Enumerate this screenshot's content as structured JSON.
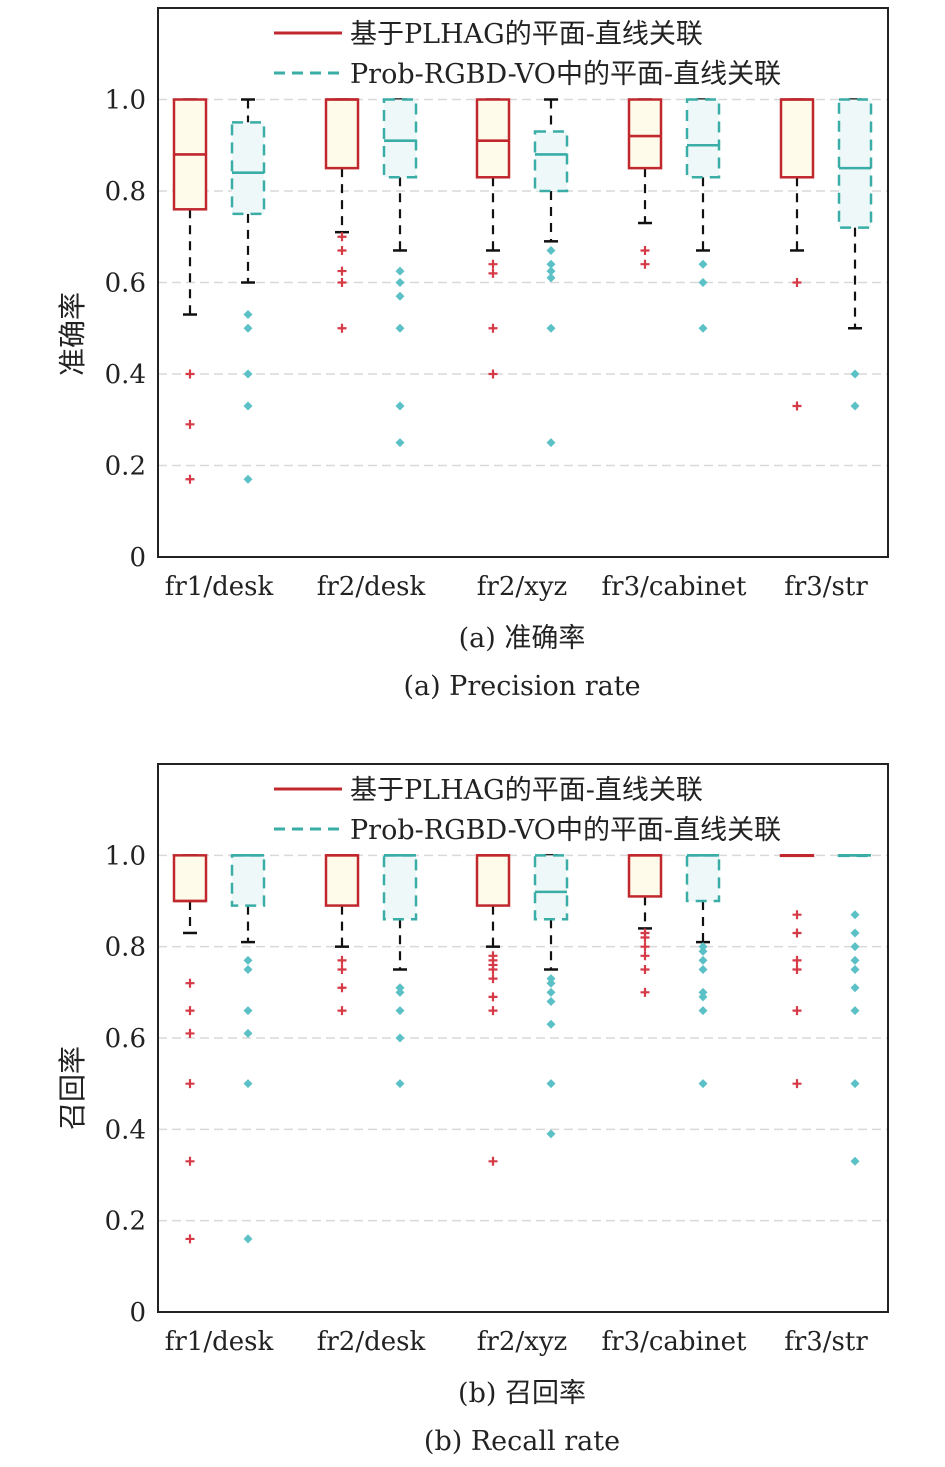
{
  "series_styles": [
    {
      "name": "基于PLHAG的平面-直线关联",
      "color": "#c0282e",
      "fill": "#fffbea",
      "dash": "",
      "flier_color": "#d63a46"
    },
    {
      "name": "Prob-RGBD-VO中的平面-直线关联",
      "color": "#3aada7",
      "fill": "#eef8f8",
      "dash": "11 7",
      "flier_color": "#5cc1c6"
    }
  ],
  "chart_data": [
    {
      "type": "box",
      "ylabel": "准确率",
      "caption_cn": "(a) 准确率",
      "caption_en": "(a) Precision rate",
      "categories": [
        "fr1/desk",
        "fr2/desk",
        "fr2/xyz",
        "fr3/cabinet",
        "fr3/str"
      ],
      "ylim": [
        0,
        1.2
      ],
      "yticks": [
        0,
        0.2,
        0.4,
        0.6,
        0.8,
        1.0
      ],
      "ytick_labels": [
        "0",
        "0.2",
        "0.4",
        "0.6",
        "0.8",
        "1.0"
      ],
      "grid": true,
      "legend": "top",
      "series": [
        {
          "name": "基于PLHAG的平面-直线关联",
          "boxes": [
            {
              "q1": 0.76,
              "median": 0.88,
              "q3": 1.0,
              "whislo": 0.53,
              "whishi": 1.0,
              "fliers": [
                0.4,
                0.29,
                0.17
              ]
            },
            {
              "q1": 0.85,
              "median": 1.0,
              "q3": 1.0,
              "whislo": 0.71,
              "whishi": 1.0,
              "fliers": [
                0.7,
                0.67,
                0.625,
                0.6,
                0.5
              ]
            },
            {
              "q1": 0.83,
              "median": 0.91,
              "q3": 1.0,
              "whislo": 0.67,
              "whishi": 1.0,
              "fliers": [
                0.64,
                0.62,
                0.5,
                0.4
              ]
            },
            {
              "q1": 0.85,
              "median": 0.92,
              "q3": 1.0,
              "whislo": 0.73,
              "whishi": 1.0,
              "fliers": [
                0.67,
                0.64
              ]
            },
            {
              "q1": 0.83,
              "median": 1.0,
              "q3": 1.0,
              "whislo": 0.67,
              "whishi": 1.0,
              "fliers": [
                0.6,
                0.33
              ]
            }
          ]
        },
        {
          "name": "Prob-RGBD-VO中的平面-直线关联",
          "boxes": [
            {
              "q1": 0.75,
              "median": 0.84,
              "q3": 0.95,
              "whislo": 0.6,
              "whishi": 1.0,
              "fliers": [
                0.53,
                0.5,
                0.4,
                0.33,
                0.17
              ]
            },
            {
              "q1": 0.83,
              "median": 0.91,
              "q3": 1.0,
              "whislo": 0.67,
              "whishi": 1.0,
              "fliers": [
                0.625,
                0.6,
                0.57,
                0.5,
                0.33,
                0.25
              ]
            },
            {
              "q1": 0.8,
              "median": 0.88,
              "q3": 0.93,
              "whislo": 0.69,
              "whishi": 1.0,
              "fliers": [
                0.67,
                0.64,
                0.625,
                0.61,
                0.5,
                0.25
              ]
            },
            {
              "q1": 0.83,
              "median": 0.9,
              "q3": 1.0,
              "whislo": 0.67,
              "whishi": 1.0,
              "fliers": [
                0.64,
                0.6,
                0.5
              ]
            },
            {
              "q1": 0.72,
              "median": 0.85,
              "q3": 1.0,
              "whislo": 0.5,
              "whishi": 1.0,
              "fliers": [
                0.4,
                0.33
              ]
            }
          ]
        }
      ]
    },
    {
      "type": "box",
      "ylabel": "召回率",
      "caption_cn": "(b) 召回率",
      "caption_en": "(b) Recall rate",
      "categories": [
        "fr1/desk",
        "fr2/desk",
        "fr2/xyz",
        "fr3/cabinet",
        "fr3/str"
      ],
      "ylim": [
        0,
        1.2
      ],
      "yticks": [
        0,
        0.2,
        0.4,
        0.6,
        0.8,
        1.0
      ],
      "ytick_labels": [
        "0",
        "0.2",
        "0.4",
        "0.6",
        "0.8",
        "1.0"
      ],
      "grid": true,
      "legend": "top",
      "series": [
        {
          "name": "基于PLHAG的平面-直线关联",
          "boxes": [
            {
              "q1": 0.9,
              "median": 0.9,
              "q3": 1.0,
              "whislo": 0.83,
              "whishi": 1.0,
              "fliers": [
                0.72,
                0.66,
                0.61,
                0.5,
                0.33,
                0.16
              ]
            },
            {
              "q1": 0.89,
              "median": 1.0,
              "q3": 1.0,
              "whislo": 0.8,
              "whishi": 1.0,
              "fliers": [
                0.77,
                0.75,
                0.71,
                0.66
              ]
            },
            {
              "q1": 0.89,
              "median": 1.0,
              "q3": 1.0,
              "whislo": 0.8,
              "whishi": 1.0,
              "fliers": [
                0.78,
                0.77,
                0.76,
                0.75,
                0.73,
                0.69,
                0.66,
                0.33
              ]
            },
            {
              "q1": 0.91,
              "median": 1.0,
              "q3": 1.0,
              "whislo": 0.84,
              "whishi": 1.0,
              "fliers": [
                0.83,
                0.82,
                0.8,
                0.78,
                0.75,
                0.7
              ]
            },
            {
              "q1": 1.0,
              "median": 1.0,
              "q3": 1.0,
              "whislo": 1.0,
              "whishi": 1.0,
              "fliers": [
                0.87,
                0.83,
                0.77,
                0.75,
                0.66,
                0.5
              ]
            }
          ]
        },
        {
          "name": "Prob-RGBD-VO中的平面-直线关联",
          "boxes": [
            {
              "q1": 0.89,
              "median": 1.0,
              "q3": 1.0,
              "whislo": 0.81,
              "whishi": 1.0,
              "fliers": [
                0.77,
                0.75,
                0.66,
                0.61,
                0.5,
                0.16
              ]
            },
            {
              "q1": 0.86,
              "median": 1.0,
              "q3": 1.0,
              "whislo": 0.75,
              "whishi": 1.0,
              "fliers": [
                0.71,
                0.7,
                0.66,
                0.6,
                0.5
              ]
            },
            {
              "q1": 0.86,
              "median": 0.92,
              "q3": 1.0,
              "whislo": 0.75,
              "whishi": 1.0,
              "fliers": [
                0.73,
                0.72,
                0.7,
                0.68,
                0.63,
                0.5,
                0.39
              ]
            },
            {
              "q1": 0.9,
              "median": 1.0,
              "q3": 1.0,
              "whislo": 0.81,
              "whishi": 1.0,
              "fliers": [
                0.8,
                0.79,
                0.77,
                0.75,
                0.7,
                0.69,
                0.66,
                0.5
              ]
            },
            {
              "q1": 1.0,
              "median": 1.0,
              "q3": 1.0,
              "whislo": 1.0,
              "whishi": 1.0,
              "fliers": [
                0.87,
                0.83,
                0.8,
                0.77,
                0.75,
                0.71,
                0.66,
                0.5,
                0.33
              ]
            }
          ]
        }
      ]
    }
  ]
}
